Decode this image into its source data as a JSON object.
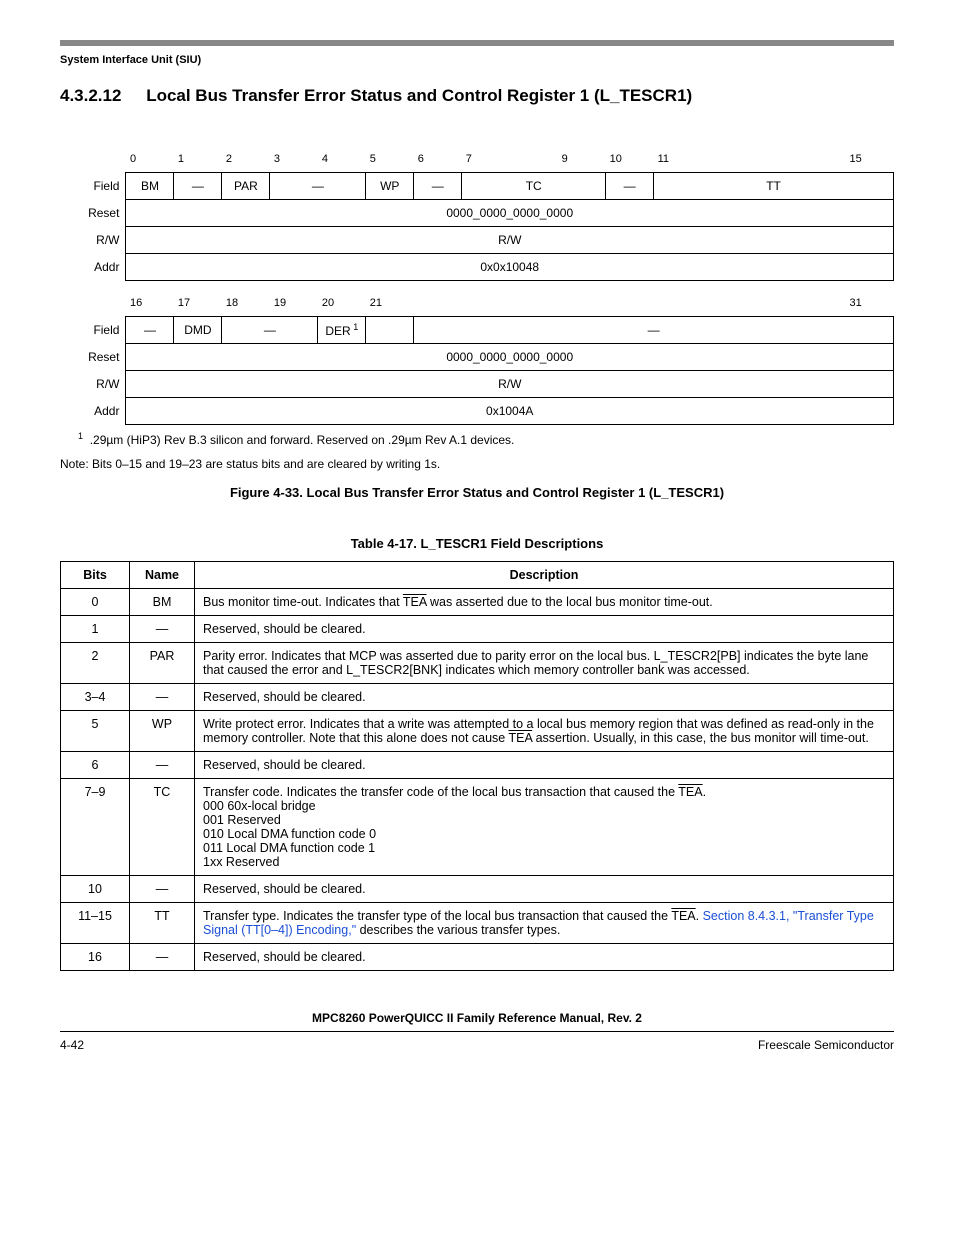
{
  "header": {
    "breadcrumb": "System Interface Unit (SIU)",
    "section_number": "4.3.2.12",
    "section_title": "Local Bus Transfer Error Status and Control Register 1 (L_TESCR1)"
  },
  "register_diagram": {
    "row_labels": [
      "Field",
      "Reset",
      "R/W",
      "Addr"
    ],
    "upper": {
      "bit_numbers": [
        "0",
        "1",
        "2",
        "3",
        "4",
        "5",
        "6",
        "7",
        "",
        "9",
        "10",
        "11",
        "",
        "",
        "",
        "15"
      ],
      "fields": [
        {
          "label": "BM",
          "span": 1
        },
        {
          "label": "—",
          "span": 1
        },
        {
          "label": "PAR",
          "span": 1
        },
        {
          "label": "—",
          "span": 2
        },
        {
          "label": "WP",
          "span": 1
        },
        {
          "label": "—",
          "span": 1
        },
        {
          "label": "TC",
          "span": 3
        },
        {
          "label": "—",
          "span": 1
        },
        {
          "label": "TT",
          "span": 5
        }
      ],
      "reset": "0000_0000_0000_0000",
      "rw": "R/W",
      "addr": "0x0x10048"
    },
    "lower": {
      "bit_numbers": [
        "16",
        "17",
        "18",
        "19",
        "20",
        "21",
        "",
        "",
        "",
        "",
        "",
        "",
        "",
        "",
        "",
        "31"
      ],
      "fields": [
        {
          "label": "—",
          "span": 1
        },
        {
          "label": "DMD",
          "span": 1
        },
        {
          "label": "—",
          "span": 2
        },
        {
          "label": "DER",
          "span": 1,
          "sup": "1"
        },
        {
          "label": "",
          "span": 1
        },
        {
          "label": "—",
          "span": 10
        }
      ],
      "reset": "0000_0000_0000_0000",
      "rw": "R/W",
      "addr": "0x1004A"
    },
    "footnote_num": "1",
    "footnote_text": ".29µm (HiP3) Rev B.3 silicon and forward. Reserved on .29µm Rev A.1 devices.",
    "note": "Note: Bits 0–15 and 19–23 are status bits and are cleared by writing 1s.",
    "figure_caption": "Figure 4-33. Local Bus Transfer Error Status and Control Register 1 (L_TESCR1)"
  },
  "field_table": {
    "caption": "Table 4-17. L_TESCR1 Field Descriptions",
    "headers": [
      "Bits",
      "Name",
      "Description"
    ],
    "rows": [
      {
        "bits": "0",
        "name": "BM",
        "desc_parts": [
          {
            "t": "Bus monitor time-out. Indicates that "
          },
          {
            "over": "TEA"
          },
          {
            "t": " was asserted due to the local bus monitor time-out."
          }
        ]
      },
      {
        "bits": "1",
        "name": "—",
        "desc_parts": [
          {
            "t": "Reserved, should be cleared."
          }
        ]
      },
      {
        "bits": "2",
        "name": "PAR",
        "desc_parts": [
          {
            "t": "Parity error. Indicates that MCP was asserted due to parity error on the local bus. L_TESCR2[PB] indicates the byte lane that caused the error and L_TESCR2[BNK] indicates which memory controller bank was accessed."
          }
        ]
      },
      {
        "bits": "3–4",
        "name": "—",
        "desc_parts": [
          {
            "t": "Reserved, should be cleared."
          }
        ]
      },
      {
        "bits": "5",
        "name": "WP",
        "desc_parts": [
          {
            "t": "Write protect error. Indicates that a write was attempted to a local bus memory region that was defined as read-only in the memory controller. Note that this alone does not cause "
          },
          {
            "over": "TEA"
          },
          {
            "t": " assertion. Usually, in this case, the bus monitor will time-out."
          }
        ]
      },
      {
        "bits": "6",
        "name": "—",
        "desc_parts": [
          {
            "t": "Reserved, should be cleared."
          }
        ]
      },
      {
        "bits": "7–9",
        "name": "TC",
        "desc_parts": [
          {
            "t": "Transfer code. Indicates the transfer code of the local bus transaction that caused the "
          },
          {
            "over": "TEA"
          },
          {
            "t": "."
          },
          {
            "br": true
          },
          {
            "t": "000 60x-local bridge"
          },
          {
            "br": true
          },
          {
            "t": "001 Reserved"
          },
          {
            "br": true
          },
          {
            "t": "010 Local DMA function code 0"
          },
          {
            "br": true
          },
          {
            "t": "011 Local DMA function code 1"
          },
          {
            "br": true
          },
          {
            "t": "1xx Reserved"
          }
        ]
      },
      {
        "bits": "10",
        "name": "—",
        "desc_parts": [
          {
            "t": "Reserved, should be cleared."
          }
        ]
      },
      {
        "bits": "11–15",
        "name": "TT",
        "desc_parts": [
          {
            "t": "Transfer type. Indicates the transfer type of the local bus transaction that caused the "
          },
          {
            "over": "TEA"
          },
          {
            "t": ". "
          },
          {
            "link": "Section 8.4.3.1, \"Transfer Type Signal (TT[0–4]) Encoding,\""
          },
          {
            "t": " describes the various transfer types."
          }
        ]
      },
      {
        "bits": "16",
        "name": "—",
        "desc_parts": [
          {
            "t": "Reserved, should be cleared."
          }
        ]
      }
    ]
  },
  "footer": {
    "manual_title": "MPC8260 PowerQUICC II Family Reference Manual, Rev. 2",
    "page_num": "4-42",
    "company": "Freescale Semiconductor"
  },
  "colors": {
    "rule": "#888888",
    "link": "#1a4fd6"
  }
}
